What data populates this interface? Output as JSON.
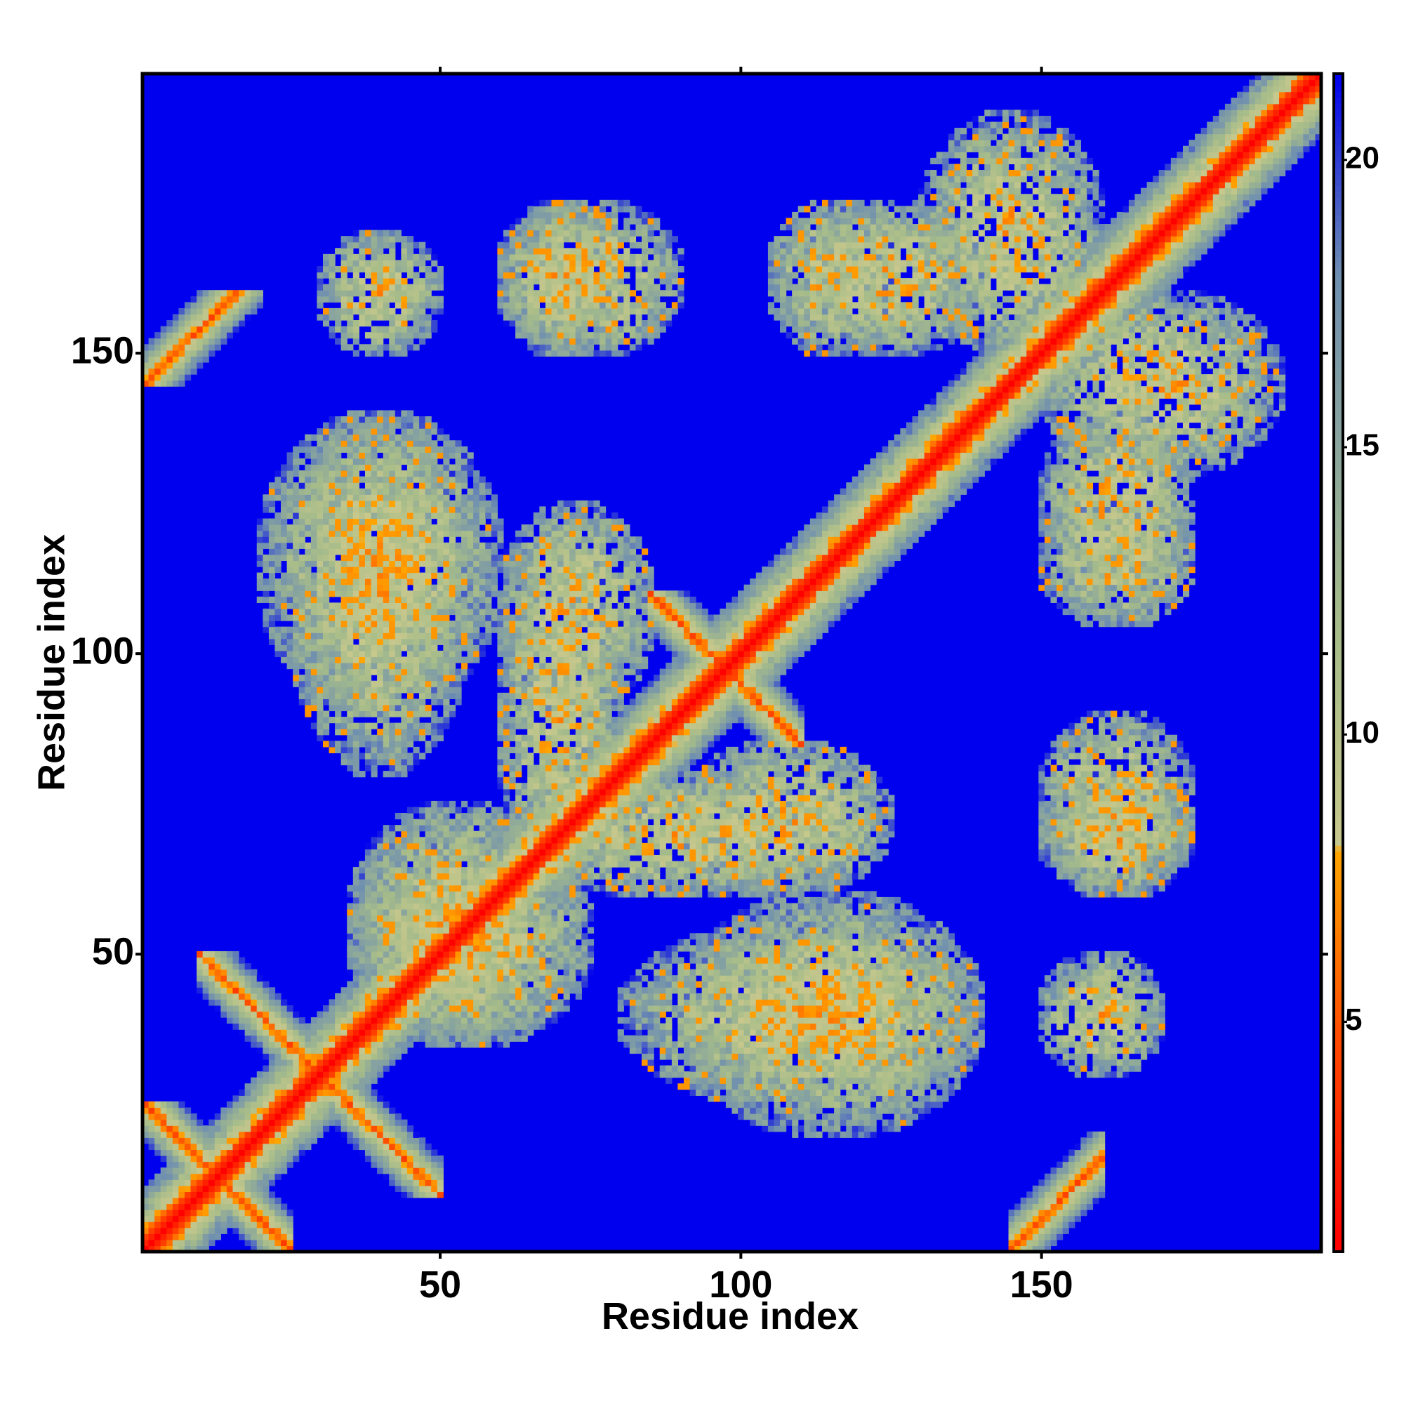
{
  "chart_data": {
    "type": "heatmap",
    "title": "",
    "xlabel": "Residue index",
    "ylabel": "Residue index",
    "n_residues": 196,
    "xlim": [
      1,
      196
    ],
    "ylim": [
      1,
      196
    ],
    "x_ticks": [
      50,
      100,
      150
    ],
    "y_ticks": [
      50,
      100,
      150
    ],
    "x_tick_labels": [
      "50",
      "100",
      "150"
    ],
    "y_tick_labels": [
      "50",
      "100",
      "150"
    ],
    "colorbar": {
      "ticks": [
        5,
        10,
        15,
        20
      ],
      "tick_labels": [
        "5",
        "10",
        "15",
        "20"
      ],
      "range": [
        1,
        21.5
      ],
      "stops": [
        {
          "value": 1,
          "color": "#ff0000"
        },
        {
          "value": 4.5,
          "color": "#ff4500"
        },
        {
          "value": 8,
          "color": "#ffa500"
        },
        {
          "value": 8.05,
          "color": "#c8c88c"
        },
        {
          "value": 12,
          "color": "#a6bc8a"
        },
        {
          "value": 18,
          "color": "#6f8fb0"
        },
        {
          "value": 21.5,
          "color": "#0000ee"
        }
      ]
    },
    "background_value": 21.5,
    "symmetric": true,
    "contact_regions": [
      {
        "x": [
          1,
          196
        ],
        "y": [
          1,
          196
        ],
        "pattern": "diagonal"
      },
      {
        "x": [
          1,
          25
        ],
        "y": [
          1,
          25
        ],
        "pattern": "antidiagonal"
      },
      {
        "x": [
          10,
          30
        ],
        "y": [
          10,
          50
        ],
        "pattern": "antidiagonal"
      },
      {
        "x": [
          85,
          110
        ],
        "y": [
          85,
          110
        ],
        "pattern": "antidiagonal"
      },
      {
        "x": [
          145,
          160
        ],
        "y": [
          1,
          20
        ],
        "pattern": "parallel"
      },
      {
        "x": [
          1,
          20
        ],
        "y": [
          145,
          160
        ],
        "pattern": "parallel"
      },
      {
        "x": [
          60,
          80
        ],
        "y": [
          150,
          175
        ],
        "pattern": "patch"
      },
      {
        "x": [
          105,
          125
        ],
        "y": [
          150,
          175
        ],
        "pattern": "patch"
      },
      {
        "x": [
          130,
          160
        ],
        "y": [
          150,
          190
        ],
        "pattern": "patch"
      },
      {
        "x": [
          150,
          175
        ],
        "y": [
          110,
          140
        ],
        "pattern": "patch"
      },
      {
        "x": [
          150,
          175
        ],
        "y": [
          60,
          90
        ],
        "pattern": "patch"
      },
      {
        "x": [
          150,
          170
        ],
        "y": [
          30,
          50
        ],
        "pattern": "patch"
      },
      {
        "x": [
          35,
          70
        ],
        "y": [
          35,
          75
        ],
        "pattern": "patch"
      },
      {
        "x": [
          60,
          80
        ],
        "y": [
          60,
          120
        ],
        "pattern": "patch"
      },
      {
        "x": [
          90,
          125
        ],
        "y": [
          60,
          85
        ],
        "pattern": "patch"
      },
      {
        "x": [
          25,
          55
        ],
        "y": [
          80,
          140
        ],
        "pattern": "patch"
      },
      {
        "x": [
          90,
          140
        ],
        "y": [
          20,
          60
        ],
        "pattern": "patch"
      }
    ]
  }
}
